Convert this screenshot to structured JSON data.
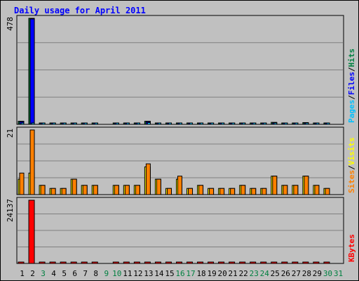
{
  "chart_data": {
    "type": "bar",
    "title": "Daily usage for April 2011",
    "categories": [
      "1",
      "2",
      "3",
      "4",
      "5",
      "6",
      "7",
      "8",
      "9",
      "10",
      "11",
      "12",
      "13",
      "14",
      "15",
      "16",
      "17",
      "18",
      "19",
      "20",
      "21",
      "22",
      "23",
      "24",
      "25",
      "26",
      "27",
      "28",
      "29",
      "30",
      "31"
    ],
    "weekend_days": [
      "3",
      "9",
      "10",
      "16",
      "17",
      "23",
      "24",
      "30",
      "31"
    ],
    "panels": [
      {
        "id": "pages-files-hits",
        "max_label": "478",
        "ylim": [
          0,
          478
        ],
        "legend": [
          "Pages",
          "/",
          "Files",
          "/",
          "Hits"
        ],
        "legend_colors": [
          "#00c0ff",
          "#000000",
          "#0000ff",
          "#000000",
          "#008040"
        ],
        "series": [
          {
            "name": "Hits",
            "color": "#008040",
            "values": [
              14,
              478,
              5,
              5,
              5,
              6,
              4,
              5,
              0,
              3,
              4,
              5,
              14,
              6,
              4,
              6,
              3,
              4,
              3,
              4,
              3,
              3,
              3,
              3,
              9,
              4,
              5,
              8,
              4,
              4,
              0
            ]
          },
          {
            "name": "Files",
            "color": "#0000ff",
            "values": [
              12,
              475,
              4,
              4,
              4,
              5,
              3,
              4,
              0,
              2,
              3,
              4,
              12,
              5,
              3,
              5,
              2,
              3,
              2,
              3,
              2,
              2,
              2,
              2,
              7,
              3,
              4,
              6,
              3,
              3,
              0
            ]
          },
          {
            "name": "Pages",
            "color": "#00c0ff",
            "values": [
              5,
              4,
              1,
              1,
              1,
              2,
              1,
              2,
              0,
              1,
              1,
              1,
              8,
              2,
              1,
              4,
              1,
              1,
              1,
              1,
              1,
              1,
              1,
              1,
              4,
              1,
              1,
              4,
              1,
              1,
              0
            ]
          }
        ]
      },
      {
        "id": "sites-visits",
        "max_label": "21",
        "ylim": [
          0,
          21
        ],
        "legend": [
          "Sites",
          "/",
          "Visits"
        ],
        "legend_colors": [
          "#ff8000",
          "#000000",
          "#ffff00"
        ],
        "series": [
          {
            "name": "Sites",
            "color": "#ffff00",
            "values": [
              5,
              7,
              3,
              2,
              2,
              5,
              3,
              3,
              0,
              3,
              3,
              3,
              9,
              5,
              2,
              5,
              2,
              3,
              2,
              2,
              2,
              3,
              2,
              2,
              6,
              3,
              3,
              6,
              3,
              2,
              0
            ]
          },
          {
            "name": "Visits",
            "color": "#ff8000",
            "values": [
              7,
              21,
              3,
              2,
              2,
              5,
              3,
              3,
              0,
              3,
              3,
              3,
              10,
              5,
              2,
              6,
              2,
              3,
              2,
              2,
              2,
              3,
              2,
              2,
              6,
              3,
              3,
              6,
              3,
              2,
              0
            ]
          }
        ]
      },
      {
        "id": "kbytes",
        "max_label": "24137",
        "ylim": [
          0,
          24137
        ],
        "legend": [
          "KBytes"
        ],
        "legend_colors": [
          "#ff0000"
        ],
        "series": [
          {
            "name": "KBytes",
            "color": "#ff0000",
            "values": [
              150,
              24137,
              120,
              110,
              110,
              140,
              100,
              120,
              0,
              90,
              100,
              110,
              190,
              130,
              110,
              140,
              90,
              110,
              90,
              100,
              90,
              100,
              90,
              90,
              160,
              100,
              110,
              150,
              100,
              90,
              0
            ]
          }
        ]
      }
    ]
  }
}
